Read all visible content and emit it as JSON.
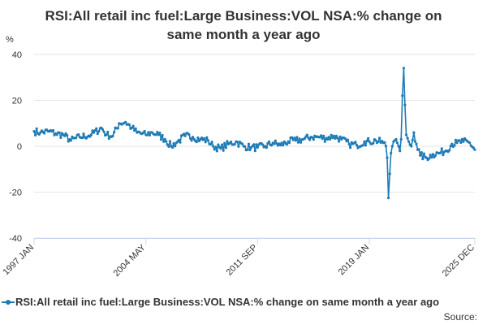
{
  "title_lines": [
    "RSI:All retail inc fuel:Large Business:VOL NSA:% change on",
    "same month a year ago"
  ],
  "source_label": "Source:",
  "colors": {
    "series": "#1f7bb6",
    "grid": "#e6e6e6",
    "axis": "#ccd6eb",
    "text": "#333333"
  },
  "chart_data": {
    "type": "line",
    "title": "RSI:All retail inc fuel:Large Business:VOL NSA:% change on same month a year ago",
    "ylabel": "%",
    "xlabel": "",
    "ylim": [
      -40,
      40
    ],
    "y_ticks": [
      40,
      20,
      0,
      -20,
      -40
    ],
    "x_tick_labels": [
      "1997 JAN",
      "2004 MAY",
      "2011 SEP",
      "2019 JAN",
      "2025 DEC"
    ],
    "grid": true,
    "legend_position": "bottom",
    "series": [
      {
        "name": "RSI:All retail inc fuel:Large Business:VOL NSA:% change on same month a year ago",
        "frequency": "monthly",
        "start": "1997 JAN",
        "end": "2025 DEC",
        "anchors": [
          [
            "1997-01",
            6.5
          ],
          [
            "1997-06",
            6
          ],
          [
            "1998-01",
            6.5
          ],
          [
            "1998-06",
            5.5
          ],
          [
            "1998-12",
            5
          ],
          [
            "1999-06",
            2.5
          ],
          [
            "2000-01",
            4
          ],
          [
            "2000-10",
            5
          ],
          [
            "2001-06",
            8
          ],
          [
            "2001-10",
            5
          ],
          [
            "2002-03",
            4.5
          ],
          [
            "2002-08",
            10
          ],
          [
            "2003-01",
            10.5
          ],
          [
            "2003-06",
            8
          ],
          [
            "2003-10",
            6
          ],
          [
            "2004-05",
            5
          ],
          [
            "2004-10",
            6
          ],
          [
            "2005-03",
            5
          ],
          [
            "2005-08",
            3
          ],
          [
            "2006-01",
            0
          ],
          [
            "2006-06",
            2
          ],
          [
            "2006-12",
            4.5
          ],
          [
            "2007-06",
            4
          ],
          [
            "2007-12",
            3
          ],
          [
            "2008-06",
            2.5
          ],
          [
            "2008-10",
            0
          ],
          [
            "2009-04",
            -1
          ],
          [
            "2009-10",
            1
          ],
          [
            "2010-04",
            2
          ],
          [
            "2010-10",
            0
          ],
          [
            "2011-04",
            -0.5
          ],
          [
            "2011-09",
            -0.5
          ],
          [
            "2012-03",
            0
          ],
          [
            "2012-09",
            1.5
          ],
          [
            "2013-03",
            0.5
          ],
          [
            "2013-09",
            2
          ],
          [
            "2014-03",
            2.5
          ],
          [
            "2014-09",
            3
          ],
          [
            "2015-03",
            4
          ],
          [
            "2015-09",
            4
          ],
          [
            "2016-03",
            3.5
          ],
          [
            "2016-09",
            4.5
          ],
          [
            "2017-03",
            3
          ],
          [
            "2017-09",
            1
          ],
          [
            "2018-03",
            0.5
          ],
          [
            "2018-09",
            2
          ],
          [
            "2019-01",
            2
          ],
          [
            "2019-06",
            2.5
          ],
          [
            "2019-12",
            1.5
          ],
          [
            "2020-02",
            0
          ],
          [
            "2020-03",
            -5
          ],
          [
            "2020-04",
            -22.5
          ],
          [
            "2020-05",
            -12
          ],
          [
            "2020-06",
            -3
          ],
          [
            "2020-07",
            0
          ],
          [
            "2020-08",
            2
          ],
          [
            "2020-10",
            3
          ],
          [
            "2020-12",
            0
          ],
          [
            "2021-01",
            -2
          ],
          [
            "2021-02",
            3
          ],
          [
            "2021-03",
            22
          ],
          [
            "2021-04",
            34
          ],
          [
            "2021-05",
            18
          ],
          [
            "2021-06",
            5
          ],
          [
            "2021-08",
            2
          ],
          [
            "2021-10",
            0
          ],
          [
            "2021-12",
            6
          ],
          [
            "2022-02",
            1
          ],
          [
            "2022-05",
            -4
          ],
          [
            "2022-10",
            -5
          ],
          [
            "2023-03",
            -3.5
          ],
          [
            "2023-08",
            -3
          ],
          [
            "2024-01",
            -2
          ],
          [
            "2024-06",
            1
          ],
          [
            "2024-10",
            1.5
          ],
          [
            "2025-03",
            2
          ],
          [
            "2025-08",
            1.5
          ],
          [
            "2025-12",
            -1.5
          ]
        ],
        "noise_amplitude": 1.6
      }
    ]
  }
}
